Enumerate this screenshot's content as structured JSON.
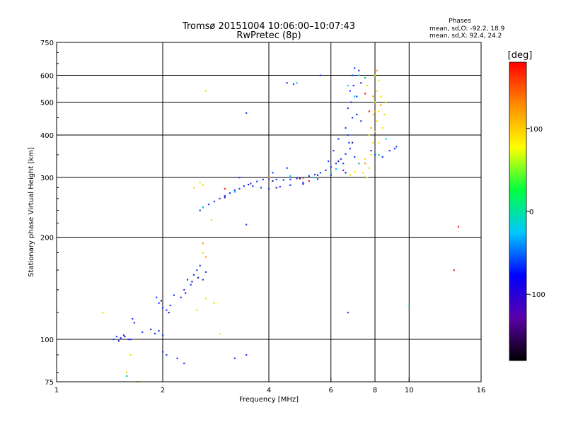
{
  "chart_data": {
    "type": "scatter",
    "title": "Tromsø 20151004 10:06:00–10:07:43",
    "subtitle": "RwPretec (8p)",
    "xlabel": "Frequency [MHz]",
    "ylabel": "Stationary phase Virtual Height [km]",
    "x_scale": "log",
    "y_scale": "log",
    "xlim": [
      1,
      16
    ],
    "ylim": [
      75,
      750
    ],
    "x_ticks": [
      1,
      2,
      4,
      6,
      8,
      10,
      16
    ],
    "y_ticks": [
      75,
      100,
      200,
      300,
      400,
      500,
      600,
      750
    ],
    "grid": true,
    "phase_stats": {
      "heading": "Phases",
      "line_o": "mean, sd,O:  -92.2, 18.9",
      "line_x": "mean, sd,X:  92.4, 24.2"
    },
    "colorbar": {
      "label": "[deg]",
      "range": [
        -180,
        180
      ],
      "ticks": [
        100,
        0,
        -100
      ],
      "colors": [
        "#000000",
        "#5b00a8",
        "#0000ff",
        "#00c8ff",
        "#00ff40",
        "#ffff00",
        "#ff8c00",
        "#ff0000"
      ]
    },
    "series": [
      {
        "phase": -100,
        "color": "#1a3cff",
        "points": [
          [
            1.45,
            100
          ],
          [
            1.48,
            102
          ],
          [
            1.52,
            101
          ],
          [
            1.55,
            103
          ],
          [
            1.6,
            100
          ],
          [
            1.64,
            115
          ],
          [
            1.66,
            112
          ],
          [
            1.75,
            105
          ],
          [
            1.9,
            104
          ],
          [
            1.95,
            106
          ],
          [
            2.0,
            103
          ],
          [
            1.95,
            128
          ],
          [
            2.0,
            124
          ],
          [
            2.05,
            122
          ],
          [
            2.1,
            126
          ],
          [
            1.92,
            133
          ],
          [
            2.15,
            135
          ],
          [
            2.25,
            133
          ],
          [
            2.3,
            140
          ],
          [
            2.35,
            150
          ],
          [
            2.4,
            145
          ],
          [
            2.45,
            155
          ],
          [
            2.5,
            160
          ],
          [
            2.55,
            165
          ],
          [
            2.6,
            150
          ],
          [
            2.65,
            158
          ],
          [
            2.0,
            92
          ],
          [
            2.05,
            90
          ],
          [
            2.2,
            88
          ],
          [
            2.3,
            85
          ],
          [
            3.2,
            88
          ],
          [
            3.45,
            90
          ],
          [
            3.45,
            218
          ],
          [
            2.55,
            240
          ],
          [
            2.6,
            245
          ],
          [
            2.7,
            250
          ],
          [
            2.8,
            255
          ],
          [
            2.9,
            260
          ],
          [
            3.0,
            265
          ],
          [
            3.1,
            270
          ],
          [
            3.2,
            275
          ],
          [
            3.3,
            278
          ],
          [
            3.4,
            283
          ],
          [
            3.55,
            288
          ],
          [
            3.7,
            292
          ],
          [
            3.85,
            296
          ],
          [
            4.0,
            298
          ],
          [
            4.2,
            296
          ],
          [
            4.4,
            295
          ],
          [
            4.6,
            296
          ],
          [
            4.8,
            298
          ],
          [
            5.0,
            300
          ],
          [
            5.2,
            303
          ],
          [
            5.4,
            306
          ],
          [
            5.6,
            310
          ],
          [
            5.8,
            315
          ],
          [
            6.0,
            322
          ],
          [
            6.2,
            330
          ],
          [
            6.4,
            340
          ],
          [
            6.6,
            352
          ],
          [
            6.8,
            365
          ],
          [
            3.6,
            283
          ],
          [
            3.8,
            280
          ],
          [
            4.0,
            278
          ],
          [
            4.3,
            282
          ],
          [
            4.6,
            285
          ],
          [
            5.0,
            290
          ],
          [
            5.5,
            297
          ],
          [
            6.0,
            305
          ],
          [
            6.5,
            315
          ],
          [
            4.1,
            310
          ],
          [
            4.5,
            320
          ],
          [
            3.3,
            300
          ],
          [
            6.6,
            420
          ],
          [
            6.7,
            480
          ],
          [
            6.8,
            540
          ],
          [
            6.9,
            600
          ],
          [
            7.0,
            630
          ],
          [
            7.2,
            620
          ],
          [
            7.3,
            570
          ],
          [
            6.7,
            400
          ],
          [
            6.9,
            450
          ],
          [
            7.1,
            520
          ],
          [
            7.3,
            440
          ],
          [
            6.75,
            380
          ],
          [
            6.85,
            500
          ],
          [
            6.95,
            560
          ],
          [
            5.6,
            600
          ],
          [
            4.5,
            570
          ],
          [
            4.7,
            565
          ],
          [
            3.45,
            465
          ],
          [
            6.7,
            120
          ],
          [
            7.8,
            360
          ],
          [
            8.0,
            350
          ],
          [
            8.4,
            345
          ],
          [
            8.8,
            360
          ],
          [
            9.1,
            365
          ],
          [
            9.2,
            370
          ],
          [
            6.5,
            330
          ],
          [
            6.3,
            390
          ],
          [
            6.1,
            360
          ],
          [
            5.9,
            335
          ],
          [
            7.0,
            345
          ]
        ]
      },
      {
        "phase": -130,
        "color": "#2a1aa8",
        "points": [
          [
            1.5,
            99
          ],
          [
            1.56,
            102
          ],
          [
            1.62,
            100
          ],
          [
            1.85,
            107
          ],
          [
            1.98,
            130
          ],
          [
            2.08,
            120
          ],
          [
            2.32,
            137
          ],
          [
            2.42,
            148
          ],
          [
            2.52,
            152
          ],
          [
            3.0,
            262
          ],
          [
            3.5,
            286
          ],
          [
            4.1,
            293
          ],
          [
            4.9,
            298
          ],
          [
            5.5,
            305
          ],
          [
            6.3,
            335
          ],
          [
            6.9,
            380
          ],
          [
            7.1,
            460
          ],
          [
            6.6,
            310
          ],
          [
            5.0,
            287
          ],
          [
            4.2,
            280
          ]
        ]
      },
      {
        "phase": 100,
        "color": "#f0e000",
        "points": [
          [
            7.6,
            300
          ],
          [
            7.7,
            320
          ],
          [
            7.8,
            350
          ],
          [
            7.9,
            380
          ],
          [
            8.0,
            410
          ],
          [
            8.1,
            440
          ],
          [
            8.2,
            470
          ],
          [
            8.0,
            500
          ],
          [
            8.1,
            540
          ],
          [
            8.3,
            520
          ],
          [
            7.9,
            460
          ],
          [
            7.7,
            400
          ],
          [
            7.5,
            340
          ],
          [
            7.4,
            310
          ],
          [
            6.8,
            305
          ],
          [
            7.0,
            312
          ],
          [
            8.2,
            380
          ],
          [
            8.4,
            420
          ],
          [
            8.5,
            460
          ],
          [
            8.6,
            500
          ],
          [
            8.2,
            580
          ],
          [
            8.0,
            600
          ],
          [
            7.6,
            560
          ],
          [
            1.35,
            120
          ],
          [
            1.62,
            90
          ],
          [
            1.58,
            80
          ],
          [
            1.7,
            75
          ],
          [
            2.5,
            122
          ],
          [
            2.8,
            128
          ],
          [
            2.65,
            132
          ],
          [
            2.6,
            180
          ],
          [
            2.75,
            225
          ],
          [
            2.6,
            285
          ],
          [
            2.9,
            104
          ],
          [
            2.65,
            540
          ],
          [
            2.55,
            290
          ],
          [
            2.45,
            280
          ]
        ]
      },
      {
        "phase": 60,
        "color": "#ff9a00",
        "points": [
          [
            7.5,
            330
          ],
          [
            7.8,
            420
          ],
          [
            8.0,
            470
          ],
          [
            8.3,
            490
          ],
          [
            7.9,
            520
          ],
          [
            8.1,
            620
          ],
          [
            2.65,
            175
          ],
          [
            2.6,
            192
          ],
          [
            4.0,
            300
          ],
          [
            5.0,
            298
          ],
          [
            5.5,
            300
          ]
        ]
      },
      {
        "phase": 180,
        "color": "#ff1a1a",
        "points": [
          [
            13.8,
            215
          ],
          [
            13.4,
            160
          ],
          [
            7.5,
            530
          ],
          [
            7.7,
            470
          ],
          [
            5.2,
            293
          ],
          [
            3.0,
            278
          ]
        ]
      },
      {
        "phase": -10,
        "color": "#00c080",
        "points": [
          [
            10.0,
            125
          ],
          [
            1.58,
            78
          ],
          [
            7.2,
            330
          ],
          [
            7.5,
            590
          ],
          [
            8.2,
            350
          ],
          [
            6.0,
            310
          ]
        ]
      },
      {
        "phase": -40,
        "color": "#00c8ff",
        "points": [
          [
            4.8,
            570
          ],
          [
            6.7,
            560
          ],
          [
            7.0,
            520
          ],
          [
            7.2,
            600
          ],
          [
            8.6,
            390
          ],
          [
            2.6,
            245
          ],
          [
            3.2,
            272
          ],
          [
            4.6,
            303
          ],
          [
            5.4,
            300
          ],
          [
            6.2,
            318
          ]
        ]
      }
    ]
  }
}
